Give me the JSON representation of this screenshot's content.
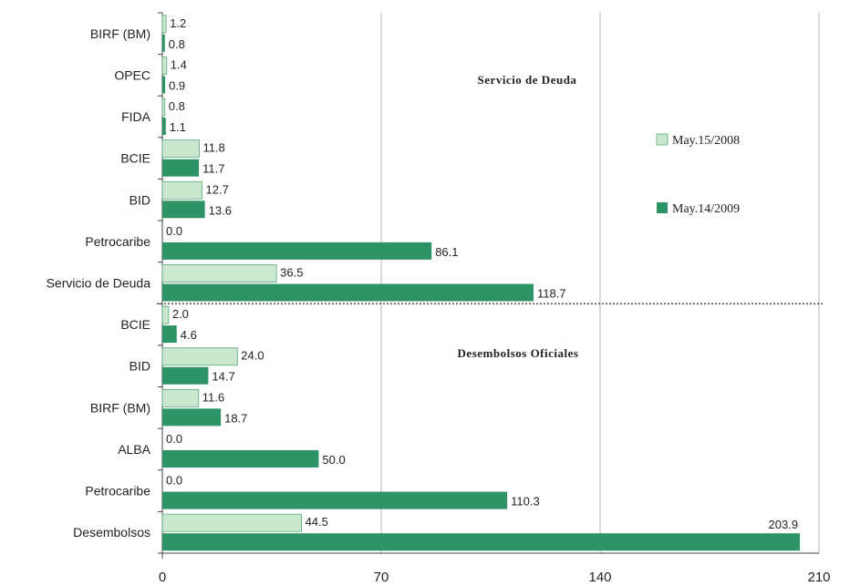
{
  "colors": {
    "series_2008": "#c9e8cf",
    "series_2008_stroke": "#5aa878",
    "series_2009": "#2e9467",
    "grid": "#b0b0b0",
    "axis": "#444444",
    "separator": "#555555"
  },
  "legend": {
    "placement": "right",
    "items": [
      "May.15/2008",
      "May.14/2009"
    ]
  },
  "sections": {
    "top": "Servicio de Deuda",
    "bottom": "Desembolsos Oficiales"
  },
  "chart_data": {
    "type": "bar",
    "orientation": "horizontal",
    "xlim": [
      0,
      210
    ],
    "xticks": [
      0,
      70,
      140,
      210
    ],
    "grid": true,
    "categories": [
      "BIRF (BM)",
      "OPEC",
      "FIDA",
      "BCIE",
      "BID",
      "Petrocaribe",
      "Servicio de Deuda",
      "BCIE",
      "BID",
      "BIRF (BM)",
      "ALBA",
      "Petrocaribe",
      "Desembolsos"
    ],
    "series": [
      {
        "name": "May.15/2008",
        "values": [
          1.2,
          1.4,
          0.8,
          11.8,
          12.7,
          0.0,
          36.5,
          2.0,
          24.0,
          11.6,
          0.0,
          0.0,
          44.5
        ]
      },
      {
        "name": "May.14/2009",
        "values": [
          0.8,
          0.9,
          1.1,
          11.7,
          13.6,
          86.1,
          118.7,
          4.6,
          14.7,
          18.7,
          50.0,
          110.3,
          203.9
        ]
      }
    ],
    "value_labels": [
      [
        "1.2",
        "1.4",
        "0.8",
        "11.8",
        "12.7",
        "0.0",
        "36.5",
        "2.0",
        "24.0",
        "11.6",
        "0.0",
        "0.0",
        "44.5"
      ],
      [
        "0.8",
        "0.9",
        "1.1",
        "11.7",
        "13.6",
        "86.1",
        "118.7",
        "4.6",
        "14.7",
        "18.7",
        "50.0",
        "110.3",
        "203.9"
      ]
    ]
  }
}
